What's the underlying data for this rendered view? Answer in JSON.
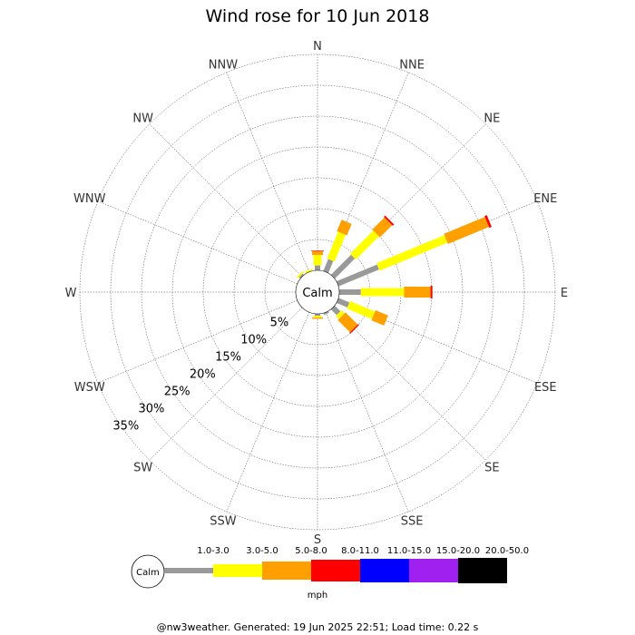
{
  "chart_data": {
    "type": "wind-rose",
    "title": "Wind rose for 10 Jun 2018",
    "directions": [
      "N",
      "NNE",
      "NE",
      "ENE",
      "E",
      "ESE",
      "SE",
      "SSE",
      "S",
      "SSW",
      "SW",
      "WSW",
      "W",
      "WNW",
      "NW",
      "NNW"
    ],
    "radial_labels": [
      "5%",
      "10%",
      "15%",
      "20%",
      "25%",
      "30%",
      "35%"
    ],
    "radial_max": 35,
    "calm_label": "Calm",
    "bins": [
      "1.0-3.0",
      "3.0-5.0",
      "5.0-8.0",
      "8.0-11.0",
      "11.0-15.0",
      "15.0-20.0",
      "20.0-50.0"
    ],
    "bin_colors": [
      "#999999",
      "#ffff00",
      "#ff9f00",
      "#ff0000",
      "#0000ff",
      "#9f20ef",
      "#000000"
    ],
    "units": "mph",
    "series": [
      {
        "direction": "N",
        "values": [
          0.8,
          1.7,
          0.6,
          0.1,
          0,
          0,
          0
        ]
      },
      {
        "direction": "NNE",
        "values": [
          2.1,
          4.7,
          2.0,
          0,
          0,
          0,
          0
        ]
      },
      {
        "direction": "NE",
        "values": [
          4.6,
          5.3,
          2.8,
          0.3,
          0,
          0,
          0
        ]
      },
      {
        "direction": "ENE",
        "values": [
          7.1,
          11.9,
          7.2,
          0.4,
          0,
          0,
          0
        ]
      },
      {
        "direction": "E",
        "values": [
          3.5,
          7.0,
          4.3,
          0.3,
          0,
          0,
          0
        ]
      },
      {
        "direction": "ESE",
        "values": [
          1.9,
          4.4,
          2.2,
          0,
          0,
          0,
          0
        ]
      },
      {
        "direction": "SE",
        "values": [
          1.3,
          0.7,
          2.8,
          0.2,
          0,
          0,
          0
        ]
      },
      {
        "direction": "SSE",
        "values": [
          0.3,
          0,
          0,
          0,
          0,
          0,
          0
        ]
      },
      {
        "direction": "S",
        "values": [
          0.3,
          0.3,
          0.2,
          0,
          0,
          0,
          0
        ]
      },
      {
        "direction": "SSW",
        "values": [
          0,
          0,
          0,
          0,
          0,
          0,
          0
        ]
      },
      {
        "direction": "SW",
        "values": [
          0,
          0,
          0,
          0,
          0,
          0,
          0
        ]
      },
      {
        "direction": "WSW",
        "values": [
          0,
          0,
          0,
          0,
          0,
          0,
          0
        ]
      },
      {
        "direction": "W",
        "values": [
          0,
          0,
          0,
          0,
          0,
          0,
          0
        ]
      },
      {
        "direction": "WNW",
        "values": [
          0,
          0,
          0,
          0,
          0,
          0,
          0
        ]
      },
      {
        "direction": "NW",
        "values": [
          0.3,
          0.3,
          0,
          0,
          0,
          0,
          0
        ]
      },
      {
        "direction": "NNW",
        "values": [
          0,
          0.3,
          0,
          0,
          0,
          0,
          0
        ]
      }
    ],
    "footer": "@nw3weather. Generated: 19 Jun 2025 22:51; Load time: 0.22 s"
  }
}
